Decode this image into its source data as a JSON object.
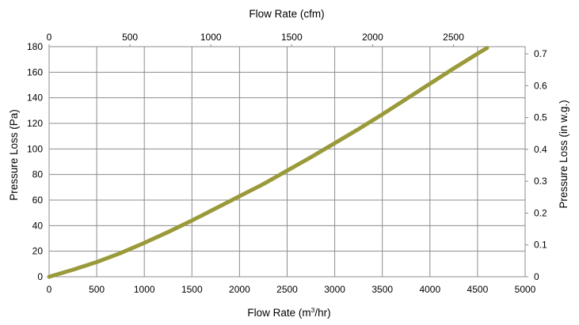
{
  "chart_data": {
    "type": "line",
    "title": "",
    "xlabel": "Flow Rate (m³/hr)",
    "xlabel_base": "Flow Rate (m",
    "xlabel_sup": "3",
    "xlabel_tail": "/hr)",
    "x2label": "Flow Rate (cfm)",
    "ylabel": "Pressure Loss (Pa)",
    "y2label": "Pressure Loss (in w.g.)",
    "xlim": [
      0,
      5000
    ],
    "ylim": [
      0,
      180
    ],
    "x2lim": [
      0,
      2943
    ],
    "y2lim": [
      0,
      0.7226
    ],
    "x_ticks": [
      "0",
      "500",
      "1000",
      "1500",
      "2000",
      "2500",
      "3000",
      "3500",
      "4000",
      "4500",
      "5000"
    ],
    "x2_ticks": [
      "0",
      "500",
      "1000",
      "1500",
      "2000",
      "2500"
    ],
    "y_ticks": [
      "0",
      "20",
      "40",
      "60",
      "80",
      "100",
      "120",
      "140",
      "160",
      "180"
    ],
    "y2_ticks": [
      "0",
      "0.1",
      "0.2",
      "0.3",
      "0.4",
      "0.5",
      "0.6",
      "0.7"
    ],
    "grid": true,
    "legend": "none",
    "series": [
      {
        "color": "#9a9a3a",
        "x": [
          0,
          250,
          500,
          750,
          1000,
          1250,
          1500,
          1750,
          2000,
          2250,
          2500,
          2750,
          3000,
          3250,
          3500,
          3750,
          4000,
          4250,
          4500,
          4600
        ],
        "y": [
          0,
          5.5,
          11.5,
          18.5,
          26.5,
          35,
          44,
          53.5,
          63,
          72.5,
          83,
          93.5,
          104.5,
          115.5,
          127,
          139,
          151,
          163,
          174.5,
          179
        ]
      }
    ]
  }
}
